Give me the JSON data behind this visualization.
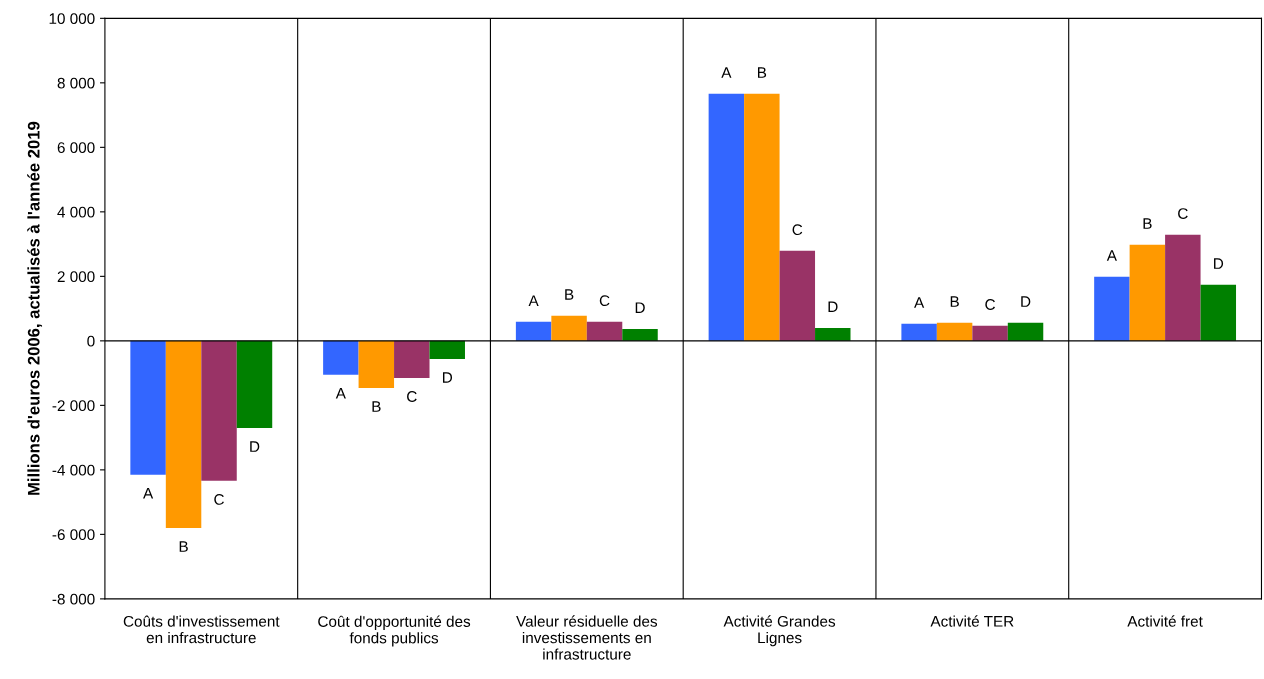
{
  "chart_data": {
    "type": "bar",
    "ylabel": "Millions d'euros 2006, actualisés à l'année 2019",
    "categories": [
      "Coûts d'investissement\nen infrastructure",
      "Coût d'opportunité des\nfonds publics",
      "Valeur résiduelle des\ninvestissements en\ninfrastructure",
      "Activité Grandes\nLignes",
      "Activité TER",
      "Activité fret"
    ],
    "series": [
      {
        "name": "A",
        "color": "#3366ff",
        "values": [
          -4150,
          -1050,
          590,
          7660,
          530,
          1990
        ]
      },
      {
        "name": "B",
        "color": "#ff9900",
        "values": [
          -5800,
          -1460,
          780,
          7660,
          560,
          2980
        ]
      },
      {
        "name": "C",
        "color": "#993366",
        "values": [
          -4340,
          -1150,
          590,
          2790,
          470,
          3290
        ]
      },
      {
        "name": "D",
        "color": "#008000",
        "values": [
          -2700,
          -560,
          370,
          400,
          560,
          1740
        ]
      }
    ],
    "ylim": [
      -8000,
      10000
    ],
    "yticks": [
      {
        "value": -8000,
        "label": "-8 000"
      },
      {
        "value": -6000,
        "label": "-6 000"
      },
      {
        "value": -4000,
        "label": "-4 000"
      },
      {
        "value": -2000,
        "label": "-2 000"
      },
      0,
      {
        "value": 2000,
        "label": "2 000"
      },
      {
        "value": 4000,
        "label": "4 000"
      },
      {
        "value": 6000,
        "label": "6 000"
      },
      {
        "value": 8000,
        "label": "8 000"
      },
      {
        "value": 10000,
        "label": "10 000"
      }
    ],
    "grid": "x",
    "legend": false
  }
}
